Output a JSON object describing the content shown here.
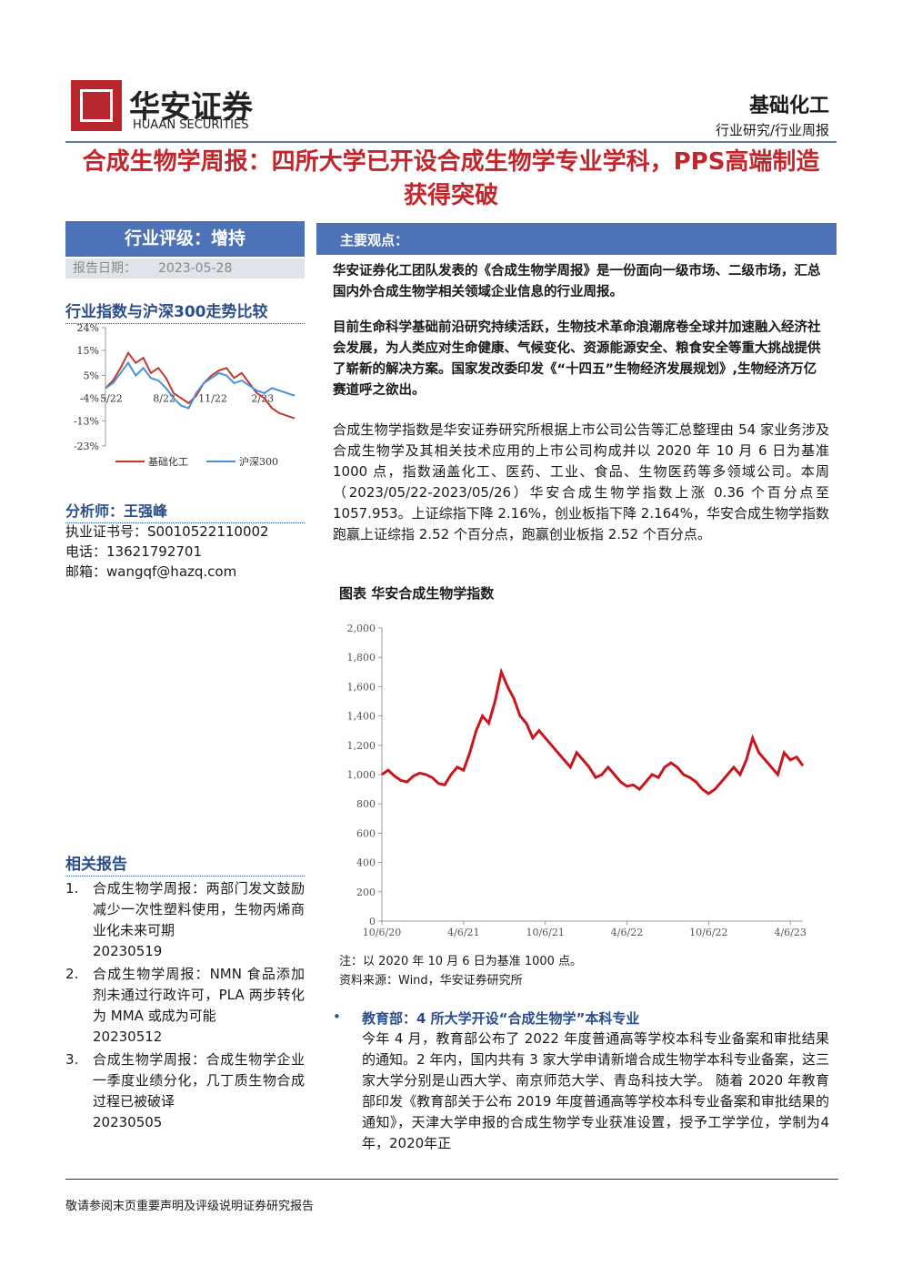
{
  "header": {
    "logo_cn": "华安证券",
    "logo_en": "HUAAN SECURITIES",
    "sector": "基础化工",
    "category": "行业研究/行业周报"
  },
  "title": "合成生物学周报：四所大学已开设合成生物学专业学科，PPS高端制造获得突破",
  "sidebar": {
    "rating": "行业评级：增持",
    "date_label": "报告日期：",
    "date": "2023-05-28",
    "analyst": {
      "heading": "分析师：王强峰",
      "lines": [
        {
          "label": "执业证书号：",
          "value": "S0010522110002"
        },
        {
          "label": "电话：",
          "value": "13621792701"
        },
        {
          "label": "邮箱：",
          "value": "wangqf@hazq.com"
        }
      ]
    },
    "related": {
      "heading": "相关报告",
      "items": [
        {
          "num": "1.",
          "text": "合成生物学周报：两部门发文鼓励减少一次性塑料使用，生物丙烯商业化未来可期",
          "date": "20230519"
        },
        {
          "num": "2.",
          "text": "合成生物学周报：NMN 食品添加剂未通过行政许可，PLA 两步转化为 MMA 或成为可能",
          "date": "20230512"
        },
        {
          "num": "3.",
          "text": "合成生物学周报：合成生物学企业一季度业绩分化，几丁质生物合成过程已被破译",
          "date": "20230505"
        }
      ]
    }
  },
  "main": {
    "box_title": "主要观点：",
    "bold_paragraphs": [
      "华安证券化工团队发表的《合成生物学周报》是一份面向一级市场、二级市场，汇总国内外合成生物学相关领域企业信息的行业周报。",
      "目前生命科学基础前沿研究持续活跃，生物技术革命浪潮席卷全球并加速融入经济社会发展，为人类应对生命健康、气候变化、资源能源安全、粮食安全等重大挑战提供了崭新的解决方案。国家发改委印发《“十四五”生物经济发展规划》,生物经济万亿赛道呼之欲出。"
    ],
    "paragraph": "合成生物学指数是华安证券研究所根据上市公司公告等汇总整理由 54 家业务涉及合成生物学及其相关技术应用的上市公司构成并以 2020 年 10 月 6 日为基准 1000 点，指数涵盖化工、医药、工业、食品、生物医药等多领域公司。本周（2023/05/22-2023/05/26）华安合成生物学指数上涨 0.36 个百分点至 1057.953。上证综指下降 2.16%，创业板指下降 2.164%，华安合成生物学指数跑赢上证综指 2.52 个百分点，跑赢创业板指 2.52 个百分点。",
    "note": "注：以 2020 年 10 月 6 日为基准 1000 点。",
    "source": "资料来源：Wind，华安证券研究所",
    "bullet_heading": "教育部：4 所大学开设“合成生物学”本科专业",
    "bullet_text": "今年 4 月，教育部公布了 2022 年度普通高等学校本科专业备案和审批结果的通知。2 年内，国内共有 3 家大学申请新增合成生物学本科专业备案，这三家大学分别是山西大学、南京师范大学、青岛科技大学。 随着 2020 年教育部印发《教育部关于公布 2019 年度普通高等学校本科专业备案和审批结果的通知》，天津大学申报的合成生物学专业获准设置，授予工学学位，学制为4年，2020年正"
  },
  "footer": "敬请参阅末页重要声明及评级说明证券研究报告",
  "chart_data": [
    {
      "type": "line",
      "title": "行业指数与沪深300走势比较",
      "categories": [
        "5/22",
        null,
        null,
        null,
        null,
        null,
        null,
        "8/22",
        null,
        null,
        null,
        null,
        null,
        "11/22",
        null,
        null,
        null,
        null,
        null,
        null,
        "2/23",
        null,
        null,
        null,
        null,
        null
      ],
      "series": [
        {
          "name": "基础化工",
          "color": "#c0392b",
          "values": [
            0,
            3,
            8,
            14,
            10,
            12,
            6,
            8,
            4,
            -2,
            -4,
            -6,
            -3,
            2,
            5,
            7,
            8,
            4,
            6,
            2,
            -2,
            -4,
            -8,
            -10,
            -11,
            -12
          ]
        },
        {
          "name": "沪深300",
          "color": "#4a90d9",
          "values": [
            0,
            2,
            6,
            10,
            5,
            8,
            4,
            3,
            0,
            -4,
            -7,
            -8,
            -2,
            2,
            4,
            6,
            5,
            2,
            3,
            1,
            -1,
            -2,
            0,
            -1,
            -2,
            -3
          ]
        }
      ],
      "ylim": [
        -23,
        24
      ],
      "yticks": [
        {
          "value": 24,
          "label": "24%"
        },
        {
          "value": 15,
          "label": "15%"
        },
        {
          "value": 5,
          "label": "5%"
        },
        {
          "value": -4,
          "label": "-4%"
        },
        {
          "value": -13,
          "label": "-13%"
        },
        {
          "value": -23,
          "label": "-23%"
        }
      ],
      "legend": "bottom"
    },
    {
      "type": "line",
      "title": "图表 华安合成生物学指数",
      "categories": [
        "10/6/20",
        null,
        null,
        null,
        null,
        null,
        null,
        null,
        null,
        null,
        null,
        null,
        null,
        "4/6/21",
        null,
        null,
        null,
        null,
        null,
        null,
        null,
        null,
        null,
        null,
        null,
        null,
        "10/6/21",
        null,
        null,
        null,
        null,
        null,
        null,
        null,
        null,
        null,
        null,
        null,
        null,
        "4/6/22",
        null,
        null,
        null,
        null,
        null,
        null,
        null,
        null,
        null,
        null,
        null,
        null,
        "10/6/22",
        null,
        null,
        null,
        null,
        null,
        null,
        null,
        null,
        null,
        null,
        null,
        null,
        "4/6/23",
        null,
        null
      ],
      "series": [
        {
          "color": "#c8161d",
          "values": [
            1000,
            1030,
            990,
            960,
            950,
            990,
            1010,
            1000,
            980,
            940,
            930,
            1000,
            1050,
            1030,
            1150,
            1300,
            1400,
            1350,
            1500,
            1700,
            1600,
            1520,
            1400,
            1350,
            1250,
            1300,
            1250,
            1200,
            1150,
            1100,
            1050,
            1150,
            1100,
            1050,
            980,
            1000,
            1050,
            1000,
            950,
            920,
            930,
            900,
            950,
            1000,
            980,
            1050,
            1080,
            1050,
            1000,
            980,
            950,
            900,
            870,
            900,
            950,
            1000,
            1050,
            1000,
            1100,
            1250,
            1150,
            1100,
            1050,
            1000,
            1150,
            1100,
            1120,
            1060
          ]
        }
      ],
      "ylim": [
        0,
        2000
      ],
      "yticks": [
        {
          "value": 2000,
          "label": "2,000"
        },
        {
          "value": 1800,
          "label": "1,800"
        },
        {
          "value": 1600,
          "label": "1,600"
        },
        {
          "value": 1400,
          "label": "1,400"
        },
        {
          "value": 1200,
          "label": "1,200"
        },
        {
          "value": 1000,
          "label": "1,000"
        },
        800,
        600,
        400,
        200,
        0
      ]
    }
  ]
}
